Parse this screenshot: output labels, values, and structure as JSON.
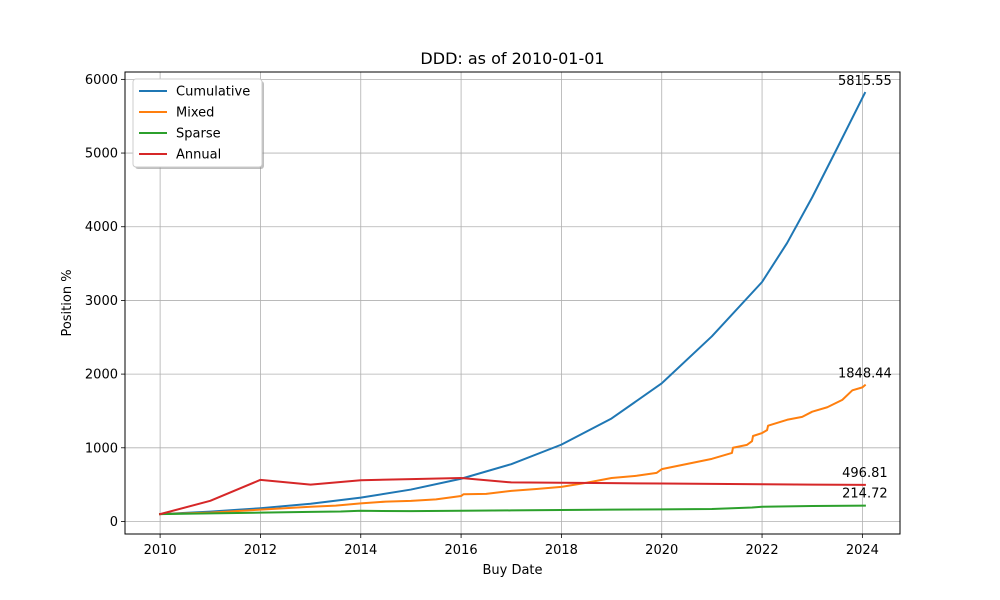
{
  "chart_data": {
    "type": "line",
    "title": "DDD: as of 2010-01-01",
    "xlabel": "Buy Date",
    "ylabel": "Position %",
    "xlim": [
      2009.3,
      2024.75
    ],
    "ylim": [
      -170,
      6100
    ],
    "x_ticks": [
      2010,
      2012,
      2014,
      2016,
      2018,
      2020,
      2022,
      2024
    ],
    "x_tick_labels": [
      "2010",
      "2012",
      "2014",
      "2016",
      "2018",
      "2020",
      "2022",
      "2024"
    ],
    "y_ticks": [
      0,
      1000,
      2000,
      3000,
      4000,
      5000,
      6000
    ],
    "y_tick_labels": [
      "0",
      "1000",
      "2000",
      "3000",
      "4000",
      "5000",
      "6000"
    ],
    "grid": true,
    "legend_position": "top-left",
    "series": [
      {
        "name": "Cumulative",
        "color": "#1f77b4",
        "x": [
          2010.0,
          2011.0,
          2012.0,
          2013.0,
          2014.0,
          2015.0,
          2016.0,
          2017.0,
          2018.0,
          2019.0,
          2020.0,
          2021.0,
          2022.0,
          2022.5,
          2023.0,
          2023.5,
          2024.05
        ],
        "y": [
          100,
          134,
          180,
          241,
          323,
          433,
          580,
          778,
          1043,
          1398,
          1875,
          2513,
          3250,
          3780,
          4400,
          5070,
          5815.55
        ]
      },
      {
        "name": "Mixed",
        "color": "#ff7f0e",
        "x": [
          2010.0,
          2011.0,
          2012.0,
          2013.0,
          2013.5,
          2014.0,
          2014.5,
          2015.0,
          2015.5,
          2016.0,
          2016.05,
          2016.5,
          2017.0,
          2017.5,
          2018.0,
          2018.5,
          2019.0,
          2019.5,
          2019.9,
          2020.0,
          2020.5,
          2021.0,
          2021.4,
          2021.42,
          2021.7,
          2021.8,
          2021.82,
          2022.0,
          2022.1,
          2022.12,
          2022.5,
          2022.8,
          2023.0,
          2023.3,
          2023.6,
          2023.8,
          2024.0,
          2024.05
        ],
        "y": [
          100,
          120,
          160,
          200,
          215,
          245,
          270,
          280,
          300,
          345,
          370,
          375,
          415,
          440,
          470,
          525,
          590,
          620,
          660,
          710,
          780,
          850,
          930,
          1000,
          1040,
          1090,
          1160,
          1200,
          1240,
          1300,
          1380,
          1420,
          1490,
          1550,
          1650,
          1780,
          1820,
          1848.44
        ]
      },
      {
        "name": "Sparse",
        "color": "#2ca02c",
        "x": [
          2010.0,
          2011.0,
          2012.0,
          2013.0,
          2013.6,
          2014.0,
          2015.0,
          2016.0,
          2017.0,
          2018.0,
          2019.0,
          2020.0,
          2021.0,
          2021.8,
          2022.0,
          2023.0,
          2024.05
        ],
        "y": [
          100,
          110,
          120,
          130,
          135,
          145,
          140,
          145,
          150,
          155,
          160,
          165,
          170,
          190,
          200,
          210,
          214.72
        ]
      },
      {
        "name": "Annual",
        "color": "#d62728",
        "x": [
          2010.0,
          2011.0,
          2012.0,
          2013.0,
          2014.0,
          2015.0,
          2016.0,
          2017.0,
          2018.0,
          2019.0,
          2020.0,
          2021.0,
          2022.0,
          2023.0,
          2024.05
        ],
        "y": [
          100,
          280,
          565,
          500,
          560,
          575,
          590,
          530,
          525,
          520,
          515,
          510,
          505,
          500,
          496.81
        ]
      }
    ],
    "annotations": [
      {
        "text": "5815.55",
        "x": 2024.05,
        "y": 5815.55
      },
      {
        "text": "1848.44",
        "x": 2024.05,
        "y": 1848.44
      },
      {
        "text": "496.81",
        "x": 2024.05,
        "y": 496.81
      },
      {
        "text": "214.72",
        "x": 2024.05,
        "y": 214.72
      }
    ]
  }
}
